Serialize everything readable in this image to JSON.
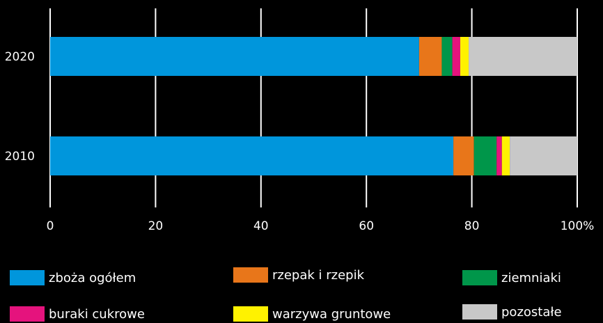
{
  "chart_data": {
    "type": "bar",
    "orientation": "horizontal",
    "stacked": true,
    "categories": [
      "2020",
      "2010"
    ],
    "series": [
      {
        "name": "zboża ogółem",
        "color": "#0096DC",
        "values": [
          70.0,
          76.5
        ]
      },
      {
        "name": "rzepak i rzepik",
        "color": "#E8761A",
        "values": [
          4.3,
          3.9
        ]
      },
      {
        "name": "ziemniaki",
        "color": "#00964A",
        "values": [
          2.0,
          4.3
        ]
      },
      {
        "name": "buraki cukrowe",
        "color": "#E5137D",
        "values": [
          1.5,
          1.0
        ]
      },
      {
        "name": "warzywa gruntowe",
        "color": "#FFF200",
        "values": [
          1.6,
          1.5
        ]
      },
      {
        "name": "pozostałe",
        "color": "#C8C8C8",
        "values": [
          20.6,
          12.8
        ]
      }
    ],
    "xlim": [
      0,
      100
    ],
    "x_ticks": [
      "0",
      "20",
      "40",
      "60",
      "80",
      "100%"
    ],
    "grid": true,
    "legend_position": "bottom"
  }
}
